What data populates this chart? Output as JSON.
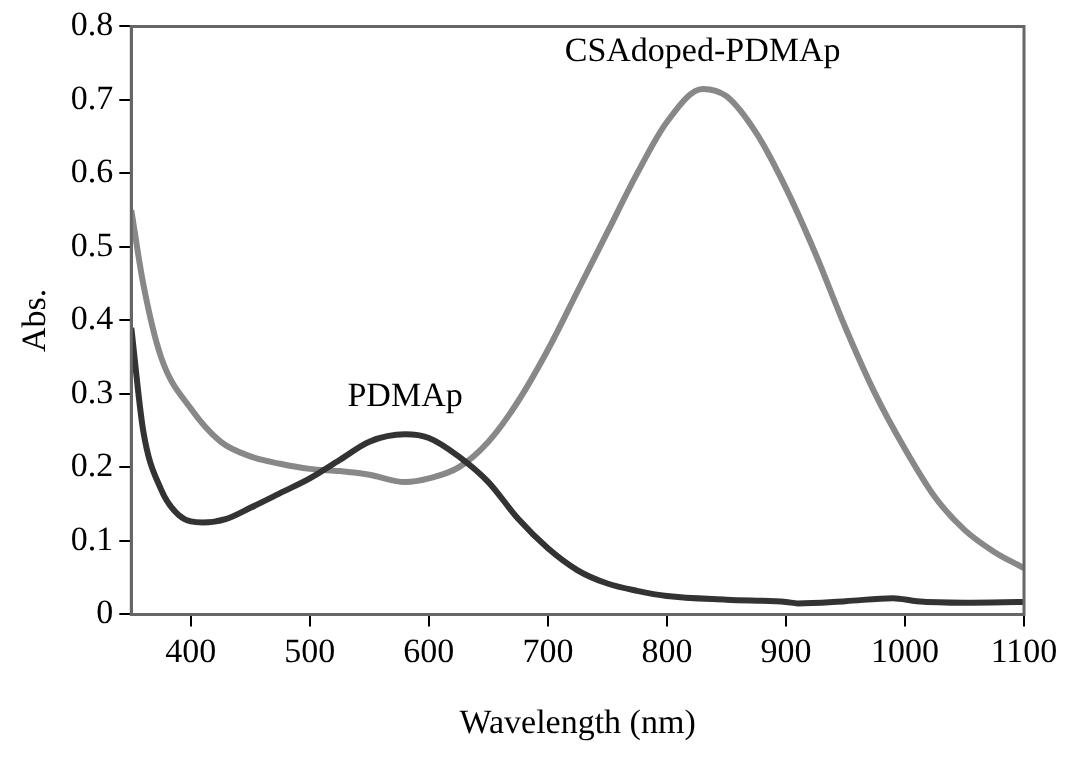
{
  "chart_data": {
    "type": "line",
    "xlabel": "Wavelength (nm)",
    "ylabel": "Abs.",
    "xlim": [
      350,
      1100
    ],
    "xticks": [
      400,
      500,
      600,
      700,
      800,
      900,
      1000,
      1100
    ],
    "ylim": [
      0,
      0.8
    ],
    "yticks": [
      0,
      0.1,
      0.2,
      0.3,
      0.4,
      0.5,
      0.6,
      0.7,
      0.8
    ],
    "grid": false,
    "legend": false,
    "marker": "none",
    "line_style": "solid",
    "series": [
      {
        "name": "PDMAp",
        "color": "#333333",
        "x": [
          350,
          360,
          375,
          390,
          410,
          430,
          450,
          475,
          500,
          525,
          550,
          580,
          600,
          625,
          650,
          675,
          700,
          725,
          750,
          775,
          800,
          850,
          900,
          910,
          950,
          990,
          1010,
          1050,
          1100
        ],
        "values": [
          0.39,
          0.25,
          0.17,
          0.135,
          0.125,
          0.13,
          0.145,
          0.165,
          0.185,
          0.21,
          0.235,
          0.245,
          0.24,
          0.215,
          0.18,
          0.13,
          0.09,
          0.06,
          0.042,
          0.032,
          0.025,
          0.02,
          0.017,
          0.015,
          0.018,
          0.022,
          0.018,
          0.016,
          0.017
        ]
      },
      {
        "name": "CSAdoped-PDMAp",
        "color": "#888888",
        "x": [
          350,
          360,
          375,
          400,
          425,
          450,
          475,
          500,
          525,
          550,
          580,
          600,
          625,
          650,
          675,
          700,
          725,
          750,
          775,
          800,
          830,
          850,
          875,
          900,
          925,
          950,
          975,
          1000,
          1025,
          1050,
          1075,
          1100
        ],
        "values": [
          0.55,
          0.45,
          0.35,
          0.28,
          0.235,
          0.215,
          0.205,
          0.198,
          0.195,
          0.19,
          0.18,
          0.185,
          0.2,
          0.235,
          0.29,
          0.36,
          0.44,
          0.52,
          0.6,
          0.67,
          0.715,
          0.705,
          0.655,
          0.58,
          0.49,
          0.39,
          0.3,
          0.225,
          0.16,
          0.115,
          0.085,
          0.063
        ]
      }
    ]
  }
}
